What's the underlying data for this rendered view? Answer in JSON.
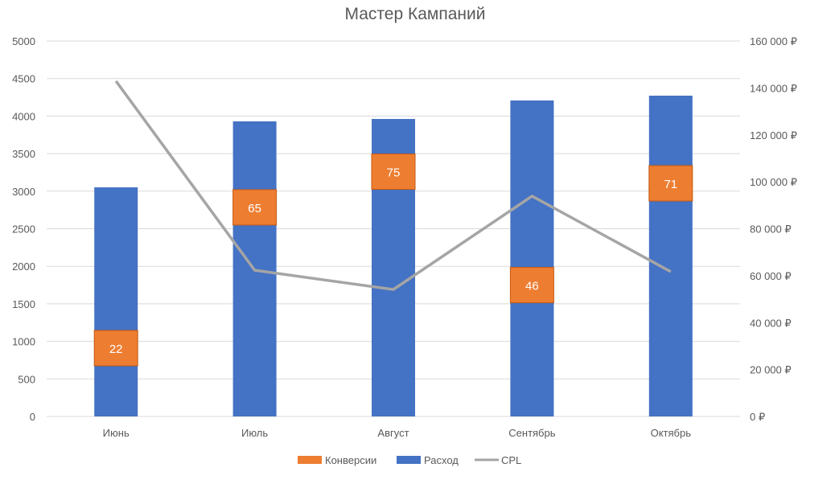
{
  "chart_data": {
    "type": "bar",
    "title": "Мастер Кампаний",
    "categories": [
      "Июнь",
      "Июль",
      "Август",
      "Сентябрь",
      "Октябрь"
    ],
    "y_left": {
      "range": [
        0,
        5000
      ],
      "ticks": [
        "0",
        "500",
        "1000",
        "1500",
        "2000",
        "2500",
        "3000",
        "3500",
        "4000",
        "4500",
        "5000"
      ]
    },
    "y_right": {
      "range": [
        0,
        160000
      ],
      "ticks": [
        "0 ₽",
        "20 000 ₽",
        "40 000 ₽",
        "60 000 ₽",
        "80 000 ₽",
        "100 000 ₽",
        "120 000 ₽",
        "140 000 ₽",
        "160 000 ₽"
      ]
    },
    "grid": true,
    "legend_position": "bottom",
    "series": [
      {
        "name": "Конверсии",
        "type": "label-box",
        "axis": "left",
        "values": [
          22,
          65,
          75,
          46,
          71
        ],
        "label_positions": [
          910,
          2785,
          3260,
          1750,
          3105
        ],
        "color": "#ED7D31"
      },
      {
        "name": "Расход",
        "type": "bar",
        "axis": "left",
        "values": [
          3051,
          3930,
          3962,
          4208,
          4272
        ],
        "color": "#4472C4"
      },
      {
        "name": "CPL",
        "type": "line",
        "axis": "right",
        "values": [
          142900,
          62300,
          54100,
          93900,
          61700
        ],
        "color": "#A5A5A5"
      }
    ]
  }
}
